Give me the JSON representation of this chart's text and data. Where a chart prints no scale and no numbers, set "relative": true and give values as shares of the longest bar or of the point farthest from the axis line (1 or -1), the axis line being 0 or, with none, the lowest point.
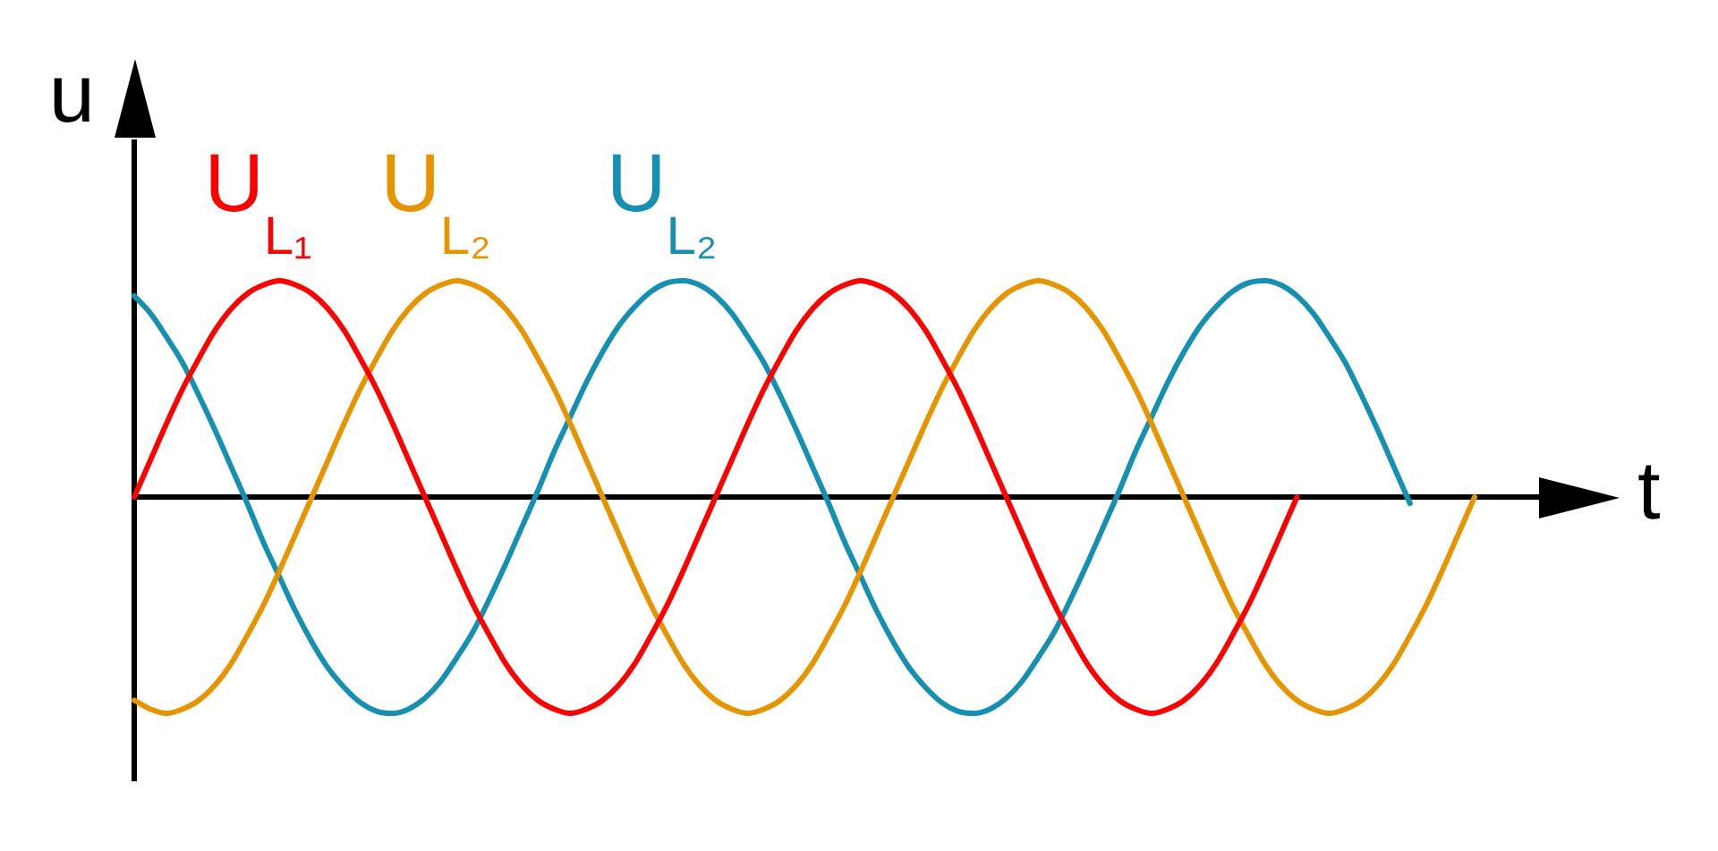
{
  "chart_data": {
    "type": "line",
    "relative": true,
    "xlabel": "t",
    "ylabel": "u",
    "marker": "none",
    "line_style": "solid",
    "categories": [
      null,
      null,
      null,
      null,
      null,
      null,
      null,
      null,
      null,
      null,
      null,
      null,
      null,
      null,
      null,
      null,
      null,
      null,
      null,
      null,
      null,
      null,
      null,
      null,
      null,
      null,
      null,
      null,
      null,
      null,
      null,
      null,
      null,
      null,
      null,
      null,
      null,
      null,
      null,
      null,
      null,
      null,
      null,
      null,
      null,
      null,
      null,
      null,
      null,
      null,
      null,
      null,
      null,
      null,
      null,
      null,
      null,
      null,
      null,
      null,
      null,
      null,
      null,
      null,
      null,
      null,
      null,
      null,
      null,
      null,
      null,
      null,
      null,
      null,
      null,
      null,
      null,
      null,
      null,
      null,
      null,
      null,
      null,
      null
    ],
    "series": [
      {
        "name": "U$_{L₁}$",
        "color": "#ff0000",
        "values": [
          0,
          0.17,
          0.34,
          0.5,
          0.64,
          0.77,
          0.87,
          0.94,
          0.98,
          1,
          0.98,
          0.94,
          0.87,
          0.77,
          0.64,
          0.5,
          0.34,
          0.17,
          0,
          -0.17,
          -0.34,
          -0.5,
          -0.64,
          -0.77,
          -0.87,
          -0.94,
          -0.98,
          -1,
          -0.98,
          -0.94,
          -0.87,
          -0.77,
          -0.64,
          -0.5,
          -0.34,
          -0.17,
          0,
          0.17,
          0.34,
          0.5,
          0.64,
          0.77,
          0.87,
          0.94,
          0.98,
          1,
          0.98,
          0.94,
          0.87,
          0.77,
          0.64,
          0.5,
          0.34,
          0.17,
          0,
          -0.17,
          -0.34,
          -0.5,
          -0.64,
          -0.77,
          -0.87,
          -0.94,
          -0.98,
          -1,
          -0.98,
          -0.94,
          -0.87,
          -0.77,
          -0.64,
          -0.5,
          -0.34,
          -0.17,
          0,
          null,
          null,
          null,
          null,
          null,
          null,
          null,
          null,
          null,
          null,
          null
        ]
      },
      {
        "name": "U$_{L₂}$",
        "color": "#e69500",
        "values": [
          -0.94,
          -0.98,
          -1,
          -0.98,
          -0.94,
          -0.87,
          -0.77,
          -0.64,
          -0.5,
          -0.34,
          -0.17,
          0,
          0.17,
          0.34,
          0.5,
          0.64,
          0.77,
          0.87,
          0.94,
          0.98,
          1,
          0.98,
          0.94,
          0.87,
          0.77,
          0.64,
          0.5,
          0.34,
          0.17,
          0,
          -0.17,
          -0.34,
          -0.5,
          -0.64,
          -0.77,
          -0.87,
          -0.94,
          -0.98,
          -1,
          -0.98,
          -0.94,
          -0.87,
          -0.77,
          -0.64,
          -0.5,
          -0.34,
          -0.17,
          0,
          0.17,
          0.34,
          0.5,
          0.64,
          0.77,
          0.87,
          0.94,
          0.98,
          1,
          0.98,
          0.94,
          0.87,
          0.77,
          0.64,
          0.5,
          0.34,
          0.17,
          0,
          -0.17,
          -0.34,
          -0.5,
          -0.64,
          -0.77,
          -0.87,
          -0.94,
          -0.98,
          -1,
          -0.98,
          -0.94,
          -0.87,
          -0.77,
          -0.64,
          -0.5,
          -0.34,
          -0.17,
          0
        ]
      },
      {
        "name": "U$_{L₂}$",
        "color": "#1690b2",
        "values": [
          0.93,
          0.85,
          0.74,
          0.62,
          0.47,
          0.31,
          0.14,
          -0.03,
          -0.21,
          -0.37,
          -0.53,
          -0.67,
          -0.79,
          -0.88,
          -0.95,
          -0.99,
          -1,
          -0.98,
          -0.93,
          -0.85,
          -0.74,
          -0.62,
          -0.47,
          -0.31,
          -0.14,
          0.03,
          0.21,
          0.37,
          0.53,
          0.67,
          0.79,
          0.88,
          0.95,
          0.99,
          1,
          0.98,
          0.93,
          0.85,
          0.74,
          0.62,
          0.47,
          0.31,
          0.14,
          -0.03,
          -0.21,
          -0.37,
          -0.53,
          -0.67,
          -0.79,
          -0.88,
          -0.95,
          -0.99,
          -1,
          -0.98,
          -0.93,
          -0.85,
          -0.74,
          -0.62,
          -0.47,
          -0.31,
          -0.14,
          0.03,
          0.21,
          0.37,
          0.53,
          0.67,
          0.79,
          0.88,
          0.95,
          0.99,
          1,
          0.98,
          0.93,
          0.85,
          0.74,
          0.62,
          0.47,
          0.31,
          0.14,
          -0.03,
          null,
          null,
          null,
          null
        ]
      }
    ]
  }
}
